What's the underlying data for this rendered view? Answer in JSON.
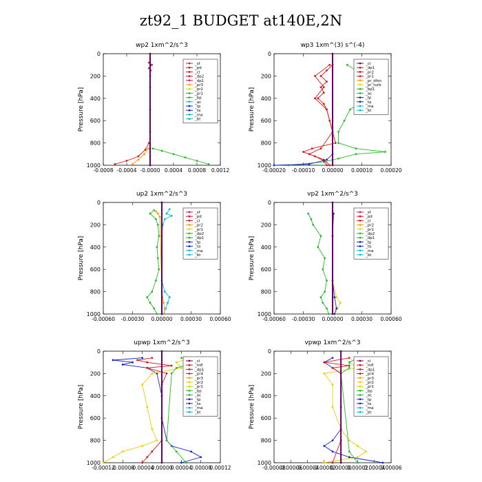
{
  "figure_title": "zt92_1  BUDGET at140E,2N",
  "colors": {
    "magenta": "#cc1177",
    "red": "#dd1111",
    "orange": "#ff9900",
    "yellow": "#eecc00",
    "green": "#22bb22",
    "blue": "#1122cc",
    "cyan": "#00bbdd",
    "purple": "#660066"
  },
  "chart_data": [
    {
      "type": "line",
      "title": "wp2   1xm^2/s^3",
      "ylabel": "Pressure [hPa]",
      "ylim": [
        1000,
        0
      ],
      "xlim": [
        -0.0008,
        0.0012
      ],
      "xticks": [
        "-0.0008",
        "-0.0004",
        "-0.0000",
        "0.0004",
        "0.0008",
        "0.0012"
      ],
      "yticks": [
        "0",
        "200",
        "400",
        "600",
        "800",
        "1000"
      ],
      "legend": [
        "_sf",
        "_pd",
        "_cl",
        "_dp2",
        "_dp1",
        "_pr3",
        "_pr2",
        "_pr1",
        "_bp",
        "_ac",
        "_tp",
        "_ta",
        "_ma",
        "_bt"
      ],
      "legend_colors": [
        "magenta",
        "red",
        "red",
        "red",
        "magenta",
        "orange",
        "yellow",
        "green",
        "green",
        "cyan",
        "blue",
        "blue",
        "cyan",
        "cyan"
      ],
      "legend_position": "top-right",
      "series": [
        {
          "name": "_pr1",
          "color": "green",
          "y": [
            850,
            870,
            900,
            930,
            960,
            990
          ],
          "x": [
            5e-05,
            0.0002,
            0.0004,
            0.0006,
            0.0008,
            0.001
          ]
        },
        {
          "name": "_pr2",
          "color": "orange",
          "y": [
            850,
            900,
            950,
            990
          ],
          "x": [
            -3e-05,
            -0.0001,
            -0.0002,
            -0.0003
          ]
        },
        {
          "name": "_dp1",
          "color": "red",
          "y": [
            800,
            860,
            920,
            960,
            990
          ],
          "x": [
            -2e-05,
            -8e-05,
            -0.0002,
            -0.0004,
            -0.0006
          ]
        },
        {
          "name": "_sf",
          "color": "magenta",
          "y": [
            80,
            100,
            130,
            150,
            200,
            300,
            500,
            700,
            850,
            1000
          ],
          "x": [
            -2e-05,
            3e-05,
            -2e-05,
            1e-05,
            0,
            0,
            0,
            0,
            0,
            0
          ]
        },
        {
          "name": "_bt",
          "color": "purple",
          "y": [
            0,
            1000
          ],
          "x": [
            0,
            0
          ]
        }
      ]
    },
    {
      "type": "line",
      "title": "wp3   1xm^(3) s^(-4)",
      "ylabel": "Pressure [hPa]",
      "ylim": [
        1000,
        0
      ],
      "xlim": [
        -0.0002,
        0.0002
      ],
      "xticks": [
        "-0.00020",
        "-0.00010",
        "0.00000",
        "0.00010",
        "0.00020"
      ],
      "yticks": [
        "0",
        "200",
        "400",
        "600",
        "800",
        "1000"
      ],
      "legend": [
        "_cl",
        "_dp1",
        "_pr2",
        "_pr1",
        "_pr_dfsn",
        "_pr_turb",
        "_bp1",
        "_ac",
        "_tp",
        "_ta",
        "_ma",
        "_bt"
      ],
      "legend_colors": [
        "purple",
        "red",
        "red",
        "red",
        "orange",
        "yellow",
        "green",
        "green",
        "blue",
        "blue",
        "cyan",
        "cyan"
      ],
      "legend_position": "top-right",
      "series": [
        {
          "name": "_bp1",
          "color": "green",
          "y": [
            100,
            150,
            200,
            300,
            400,
            500,
            600,
            700,
            800,
            850,
            880,
            900,
            940,
            970,
            1000
          ],
          "x": [
            5e-05,
            8e-05,
            0.0001,
            0.0001,
            0.00012,
            6e-05,
            4e-05,
            2e-05,
            2e-05,
            8e-05,
            0.00018,
            8e-05,
            2e-05,
            -3e-05,
            -0.00015
          ]
        },
        {
          "name": "_pr2",
          "color": "red",
          "y": [
            100,
            150,
            200,
            250,
            300,
            350,
            400,
            450,
            500,
            600,
            700,
            800,
            850,
            880,
            920,
            960,
            1000
          ],
          "x": [
            0,
            -2e-05,
            -4e-05,
            -2e-05,
            -4e-05,
            -3e-05,
            -5e-05,
            -3e-05,
            -2e-05,
            -1e-05,
            0,
            1e-05,
            -7e-05,
            -0.0001,
            -6e-05,
            -3e-05,
            -2e-05
          ]
        },
        {
          "name": "_pr1",
          "color": "red",
          "y": [
            100,
            200,
            300,
            400,
            500,
            700,
            850,
            900,
            950,
            1000
          ],
          "x": [
            -1e-05,
            -6e-05,
            -3e-05,
            -6e-05,
            -2e-05,
            0,
            -4e-05,
            -8e-05,
            -3e-05,
            -1e-05
          ]
        },
        {
          "name": "_tp",
          "color": "blue",
          "y": [
            900,
            950,
            990,
            1000
          ],
          "x": [
            0,
            -2e-05,
            -8e-05,
            -0.0002
          ]
        },
        {
          "name": "_bt",
          "color": "purple",
          "y": [
            0,
            1000
          ],
          "x": [
            0,
            0
          ]
        }
      ]
    },
    {
      "type": "line",
      "title": "up2   1xm^2/s^3",
      "ylabel": "Pressure [hPa]",
      "ylim": [
        1000,
        0
      ],
      "xlim": [
        -0.0006,
        0.0006
      ],
      "xticks": [
        "-0.00060",
        "-0.00030",
        "0.00000",
        "0.00030",
        "0.00060"
      ],
      "yticks": [
        "0",
        "200",
        "400",
        "600",
        "800",
        "1000"
      ],
      "legend": [
        "_sf",
        "_pd",
        "_cl",
        "_pr2",
        "_pr1",
        "_dp2",
        "_dp1",
        "_tp",
        "_ta",
        "_ma",
        "_bt"
      ],
      "legend_colors": [
        "magenta",
        "red",
        "red",
        "orange",
        "yellow",
        "green",
        "green",
        "blue",
        "blue",
        "cyan",
        "cyan"
      ],
      "legend_position": "top-right",
      "series": [
        {
          "name": "_tp",
          "color": "cyan",
          "y": [
            60,
            100,
            120,
            150,
            200,
            300,
            500,
            700,
            800,
            850,
            900,
            950,
            1000
          ],
          "x": [
            8e-05,
            5e-05,
            0.0001,
            3e-05,
            1e-05,
            0,
            0,
            0,
            3e-05,
            8e-05,
            6e-05,
            4e-05,
            2e-05
          ]
        },
        {
          "name": "_dp2",
          "color": "green",
          "y": [
            70,
            100,
            150,
            200,
            300,
            400,
            500,
            600,
            700,
            800,
            850,
            900,
            950,
            1000
          ],
          "x": [
            -8e-05,
            -0.00012,
            -6e-05,
            -4e-05,
            -3e-05,
            -5e-05,
            -4e-05,
            -3e-05,
            -6e-05,
            -0.0001,
            -0.00015,
            -0.00012,
            -8e-05,
            -5e-05
          ]
        },
        {
          "name": "_pr2",
          "color": "orange",
          "y": [
            80,
            100,
            130,
            800,
            900,
            1000
          ],
          "x": [
            -6e-05,
            -4e-05,
            -2e-05,
            0,
            2e-05,
            3e-05
          ]
        },
        {
          "name": "_pd",
          "color": "red",
          "y": [
            0,
            1000
          ],
          "x": [
            0,
            0
          ]
        },
        {
          "name": "_bt",
          "color": "purple",
          "y": [
            0,
            1000
          ],
          "x": [
            0,
            0
          ]
        }
      ]
    },
    {
      "type": "line",
      "title": "vp2   1xm^2/s^3",
      "ylabel": "Pressure [hPa]",
      "ylim": [
        1000,
        0
      ],
      "xlim": [
        -0.0006,
        0.0006
      ],
      "xticks": [
        "-0.00060",
        "-0.00030",
        "0.00000",
        "0.00030",
        "0.00060"
      ],
      "yticks": [
        "0",
        "200",
        "400",
        "600",
        "800",
        "1000"
      ],
      "legend": [
        "_sf",
        "_pd",
        "_cl",
        "_pr2",
        "_pr1",
        "_dp2",
        "_dp1",
        "_tp",
        "_ta",
        "_ma",
        "_bt"
      ],
      "legend_colors": [
        "magenta",
        "red",
        "red",
        "orange",
        "yellow",
        "green",
        "green",
        "blue",
        "blue",
        "cyan",
        "cyan"
      ],
      "legend_position": "top-right",
      "series": [
        {
          "name": "_dp2",
          "color": "green",
          "y": [
            100,
            150,
            200,
            300,
            400,
            500,
            600,
            700,
            800,
            850,
            900,
            950,
            1000
          ],
          "x": [
            -0.00025,
            -0.00022,
            -0.0002,
            -0.00012,
            -0.00015,
            -8e-05,
            -0.0001,
            -6e-05,
            -8e-05,
            -0.00012,
            -0.0001,
            -6e-05,
            -4e-05
          ]
        },
        {
          "name": "_pr2",
          "color": "yellow",
          "y": [
            100,
            300,
            700,
            850,
            900,
            950,
            1000
          ],
          "x": [
            0,
            0,
            0,
            4e-05,
            8e-05,
            5e-05,
            3e-05
          ]
        },
        {
          "name": "_tp",
          "color": "blue",
          "y": [
            100,
            300,
            700,
            850,
            950,
            1000
          ],
          "x": [
            1e-05,
            0,
            0,
            2e-05,
            4e-05,
            2e-05
          ]
        },
        {
          "name": "_bt",
          "color": "purple",
          "y": [
            0,
            1000
          ],
          "x": [
            0,
            0
          ]
        }
      ]
    },
    {
      "type": "line",
      "title": "upwp   1xm^2/s^3",
      "ylabel": "Pressure [hPa]",
      "ylim": [
        1000,
        0
      ],
      "xlim": [
        -0.00012,
        0.00012
      ],
      "xticks": [
        "-0.00012",
        "-0.00008",
        "-0.00004",
        "0.00000",
        "0.00004",
        "0.00008",
        "0.00012"
      ],
      "yticks": [
        "0",
        "200",
        "400",
        "600",
        "800",
        "1000"
      ],
      "legend": [
        "_cl",
        "_mfl",
        "_dp1",
        "_pr4",
        "_pr3",
        "_pr2",
        "_pr1",
        "_bp",
        "_ac",
        "_tp",
        "_ta",
        "_ma",
        "_bt"
      ],
      "legend_colors": [
        "purple",
        "red",
        "red",
        "red",
        "orange",
        "yellow",
        "yellow",
        "green",
        "green",
        "blue",
        "blue",
        "cyan",
        "cyan"
      ],
      "legend_position": "top-right",
      "series": [
        {
          "name": "_tp",
          "color": "blue",
          "y": [
            60,
            80,
            100,
            120,
            150,
            200,
            400,
            600,
            800,
            850,
            900,
            950,
            1000
          ],
          "x": [
            -4e-05,
            -0.0001,
            -6e-05,
            -8e-05,
            -3e-05,
            -1e-05,
            0,
            0,
            1e-05,
            2e-05,
            6e-05,
            8e-05,
            4e-05
          ]
        },
        {
          "name": "_pr3",
          "color": "yellow",
          "y": [
            60,
            100,
            150,
            200,
            300,
            500,
            700,
            800,
            850,
            900,
            950,
            1000
          ],
          "x": [
            6e-05,
            3e-05,
            4e-05,
            -2e-05,
            -4e-05,
            -3e-05,
            -2e-05,
            -1e-05,
            -4e-05,
            -8e-05,
            -0.0001,
            -0.00012
          ]
        },
        {
          "name": "_mfl",
          "color": "red",
          "y": [
            60,
            80,
            100,
            130,
            150,
            200,
            300,
            800,
            900,
            950,
            1000
          ],
          "x": [
            -2e-05,
            -5e-05,
            -3e-05,
            2e-05,
            -3e-05,
            1e-05,
            0,
            0,
            -2e-05,
            -3e-05,
            -4e-05
          ]
        },
        {
          "name": "_bp",
          "color": "green",
          "y": [
            60,
            100,
            150,
            200,
            800,
            900,
            1000
          ],
          "x": [
            4e-05,
            7e-05,
            3e-05,
            2e-05,
            1e-05,
            3e-05,
            5e-05
          ]
        },
        {
          "name": "_bt",
          "color": "purple",
          "y": [
            0,
            1000
          ],
          "x": [
            0,
            0
          ]
        }
      ]
    },
    {
      "type": "line",
      "title": "vpwp   1xm^2/s^3",
      "ylabel": "Pressure [hPa]",
      "ylim": [
        1000,
        0
      ],
      "xlim": [
        -8e-05,
        6e-05
      ],
      "xticks": [
        "-0.00008",
        "-0.00006",
        "-0.00004",
        "-0.00002",
        "0.00000",
        "0.00002",
        "0.00004",
        "0.00006"
      ],
      "yticks": [
        "0",
        "200",
        "400",
        "600",
        "800",
        "1000"
      ],
      "legend": [
        "_cl",
        "_mfl",
        "_dp1",
        "_pr4",
        "_pr3",
        "_pr2",
        "_pr1",
        "_bp",
        "_ac",
        "_tp",
        "_ta",
        "_ma",
        "_bt"
      ],
      "legend_colors": [
        "purple",
        "red",
        "red",
        "red",
        "orange",
        "yellow",
        "yellow",
        "green",
        "green",
        "blue",
        "blue",
        "cyan",
        "cyan"
      ],
      "legend_position": "top-right",
      "series": [
        {
          "name": "_pr3",
          "color": "yellow",
          "y": [
            60,
            100,
            150,
            200,
            300,
            500,
            700,
            800,
            850,
            900,
            950,
            1000
          ],
          "x": [
            2e-05,
            1e-05,
            2e-05,
            -2e-05,
            -1e-05,
            -1e-05,
            0,
            1e-05,
            2e-05,
            3e-05,
            2e-05,
            -2e-05
          ]
        },
        {
          "name": "_tp",
          "color": "blue",
          "y": [
            60,
            100,
            150,
            200,
            500,
            700,
            800,
            850,
            900,
            950,
            1000
          ],
          "x": [
            -1e-05,
            -2e-05,
            -1e-05,
            0,
            0,
            0,
            -1e-05,
            -2e-05,
            -1e-05,
            1e-05,
            5e-05
          ]
        },
        {
          "name": "_mfl",
          "color": "red",
          "y": [
            60,
            100,
            130,
            150,
            200,
            800,
            1000
          ],
          "x": [
            1e-05,
            -2e-05,
            1e-05,
            -1e-05,
            0,
            0,
            -1e-05
          ]
        },
        {
          "name": "_bp",
          "color": "green",
          "y": [
            60,
            100,
            150,
            200,
            900,
            1000
          ],
          "x": [
            2e-05,
            1e-05,
            1e-05,
            0,
            1e-05,
            2e-05
          ]
        },
        {
          "name": "_bt",
          "color": "purple",
          "y": [
            0,
            1000
          ],
          "x": [
            0,
            0
          ]
        }
      ]
    }
  ]
}
